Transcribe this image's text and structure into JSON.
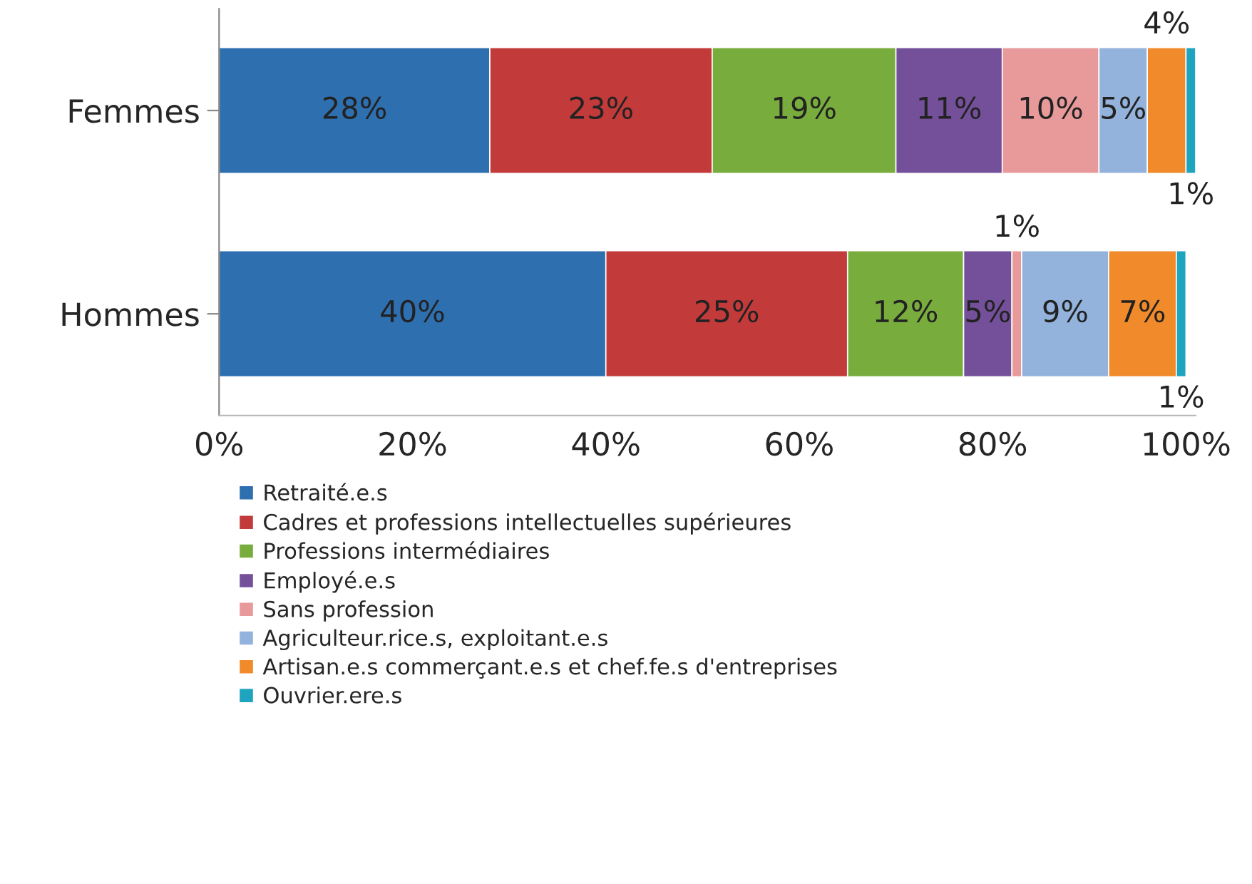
{
  "chart_data": {
    "type": "bar",
    "orientation": "horizontal",
    "stacked": true,
    "categories": [
      "Femmes",
      "Hommes"
    ],
    "series": [
      {
        "name": "Retraité.e.s",
        "color": "#2e6fb0",
        "values": [
          28,
          40
        ],
        "value_labels": [
          "28%",
          "40%"
        ]
      },
      {
        "name": "Cadres et professions intellectuelles supérieures",
        "color": "#c23b3a",
        "values": [
          23,
          25
        ],
        "value_labels": [
          "23%",
          "25%"
        ]
      },
      {
        "name": "Professions intermédiaires",
        "color": "#78ad3e",
        "values": [
          19,
          12
        ],
        "value_labels": [
          "19%",
          "12%"
        ]
      },
      {
        "name": "Employé.e.s",
        "color": "#74509a",
        "values": [
          11,
          5
        ],
        "value_labels": [
          "11%",
          "5%"
        ]
      },
      {
        "name": "Sans profession",
        "color": "#e89a9b",
        "values": [
          10,
          1
        ],
        "value_labels": [
          "10%",
          "1%"
        ]
      },
      {
        "name": "Agriculteur.rice.s, exploitant.e.s",
        "color": "#93b3dc",
        "values": [
          5,
          9
        ],
        "value_labels": [
          "5%",
          "9%"
        ]
      },
      {
        "name": "Artisan.e.s commerçant.e.s et chef.fe.s d'entreprises",
        "color": "#f08a2a",
        "values": [
          4,
          7
        ],
        "value_labels": [
          "4%",
          "7%"
        ]
      },
      {
        "name": "Ouvrier.ere.s",
        "color": "#1fa4bf",
        "values": [
          1,
          1
        ],
        "value_labels": [
          "1%",
          "1%"
        ]
      }
    ],
    "xlim": [
      0,
      101
    ],
    "xticks": [
      {
        "value": 0,
        "label": "0%"
      },
      {
        "value": 20,
        "label": "20%"
      },
      {
        "value": 40,
        "label": "40%"
      },
      {
        "value": 60,
        "label": "60%"
      },
      {
        "value": 80,
        "label": "80%"
      },
      {
        "value": 100,
        "label": "100%"
      }
    ],
    "grid": false,
    "legend": "bottom"
  }
}
